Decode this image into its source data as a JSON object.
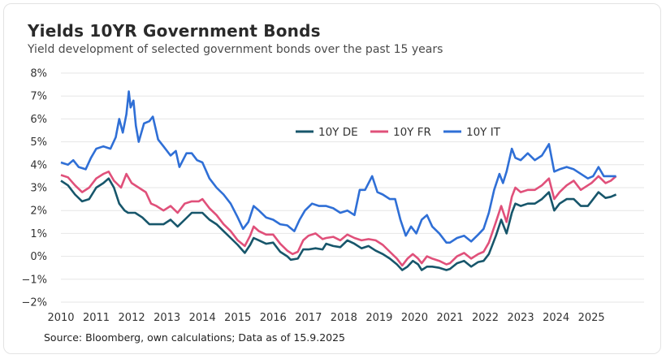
{
  "title": "Yields 10YR Government Bonds",
  "subtitle": "Yield development of selected government bonds over the past 15 years",
  "source": "Source: Bloomberg, own calculations; Data as of 15.9.2025",
  "chart_data": {
    "type": "line",
    "title": "Yields 10YR Government Bonds",
    "xlabel": "",
    "ylabel": "",
    "xlim": [
      2010,
      2025.8
    ],
    "ylim": [
      -2,
      8
    ],
    "x_ticks": [
      "2010",
      "2011",
      "2012",
      "2013",
      "2014",
      "2015",
      "2016",
      "2017",
      "2018",
      "2019",
      "2020",
      "2021",
      "2022",
      "2023",
      "2024",
      "2025"
    ],
    "y_ticks": [
      "8%",
      "7%",
      "6%",
      "5%",
      "4%",
      "3%",
      "2%",
      "1%",
      "0%",
      "−1%",
      "−2%"
    ],
    "y_tick_values": [
      8,
      7,
      6,
      5,
      4,
      3,
      2,
      1,
      0,
      -1,
      -2
    ],
    "grid": true,
    "legend_position": "top-center",
    "series": [
      {
        "name": "10Y DE",
        "color": "#17566b",
        "points": [
          [
            2010.0,
            3.3
          ],
          [
            2010.2,
            3.1
          ],
          [
            2010.4,
            2.7
          ],
          [
            2010.6,
            2.4
          ],
          [
            2010.8,
            2.5
          ],
          [
            2011.0,
            3.0
          ],
          [
            2011.2,
            3.2
          ],
          [
            2011.35,
            3.4
          ],
          [
            2011.5,
            3.0
          ],
          [
            2011.65,
            2.3
          ],
          [
            2011.8,
            2.0
          ],
          [
            2011.9,
            1.9
          ],
          [
            2012.1,
            1.9
          ],
          [
            2012.3,
            1.7
          ],
          [
            2012.5,
            1.4
          ],
          [
            2012.7,
            1.4
          ],
          [
            2012.9,
            1.4
          ],
          [
            2013.1,
            1.6
          ],
          [
            2013.3,
            1.3
          ],
          [
            2013.5,
            1.6
          ],
          [
            2013.7,
            1.9
          ],
          [
            2013.85,
            1.9
          ],
          [
            2014.0,
            1.9
          ],
          [
            2014.2,
            1.6
          ],
          [
            2014.4,
            1.4
          ],
          [
            2014.6,
            1.1
          ],
          [
            2014.8,
            0.8
          ],
          [
            2015.0,
            0.5
          ],
          [
            2015.2,
            0.15
          ],
          [
            2015.35,
            0.5
          ],
          [
            2015.45,
            0.8
          ],
          [
            2015.6,
            0.7
          ],
          [
            2015.8,
            0.55
          ],
          [
            2016.0,
            0.6
          ],
          [
            2016.2,
            0.2
          ],
          [
            2016.4,
            0.0
          ],
          [
            2016.5,
            -0.15
          ],
          [
            2016.7,
            -0.1
          ],
          [
            2016.85,
            0.3
          ],
          [
            2017.0,
            0.3
          ],
          [
            2017.2,
            0.35
          ],
          [
            2017.4,
            0.3
          ],
          [
            2017.5,
            0.55
          ],
          [
            2017.7,
            0.45
          ],
          [
            2017.9,
            0.4
          ],
          [
            2018.1,
            0.7
          ],
          [
            2018.3,
            0.55
          ],
          [
            2018.5,
            0.35
          ],
          [
            2018.7,
            0.45
          ],
          [
            2018.9,
            0.25
          ],
          [
            2019.1,
            0.1
          ],
          [
            2019.3,
            -0.1
          ],
          [
            2019.5,
            -0.35
          ],
          [
            2019.65,
            -0.6
          ],
          [
            2019.8,
            -0.45
          ],
          [
            2019.95,
            -0.2
          ],
          [
            2020.1,
            -0.35
          ],
          [
            2020.2,
            -0.6
          ],
          [
            2020.35,
            -0.45
          ],
          [
            2020.5,
            -0.45
          ],
          [
            2020.7,
            -0.5
          ],
          [
            2020.9,
            -0.6
          ],
          [
            2021.0,
            -0.55
          ],
          [
            2021.2,
            -0.3
          ],
          [
            2021.4,
            -0.2
          ],
          [
            2021.6,
            -0.45
          ],
          [
            2021.8,
            -0.25
          ],
          [
            2021.95,
            -0.2
          ],
          [
            2022.1,
            0.1
          ],
          [
            2022.3,
            0.9
          ],
          [
            2022.45,
            1.6
          ],
          [
            2022.6,
            1.0
          ],
          [
            2022.75,
            1.9
          ],
          [
            2022.85,
            2.3
          ],
          [
            2023.0,
            2.2
          ],
          [
            2023.2,
            2.3
          ],
          [
            2023.4,
            2.3
          ],
          [
            2023.6,
            2.5
          ],
          [
            2023.8,
            2.8
          ],
          [
            2023.95,
            2.0
          ],
          [
            2024.1,
            2.3
          ],
          [
            2024.3,
            2.5
          ],
          [
            2024.5,
            2.5
          ],
          [
            2024.7,
            2.2
          ],
          [
            2024.9,
            2.2
          ],
          [
            2025.0,
            2.4
          ],
          [
            2025.2,
            2.8
          ],
          [
            2025.4,
            2.55
          ],
          [
            2025.55,
            2.6
          ],
          [
            2025.7,
            2.7
          ]
        ]
      },
      {
        "name": "10Y FR",
        "color": "#e0507a",
        "points": [
          [
            2010.0,
            3.55
          ],
          [
            2010.2,
            3.45
          ],
          [
            2010.4,
            3.1
          ],
          [
            2010.6,
            2.8
          ],
          [
            2010.8,
            3.0
          ],
          [
            2011.0,
            3.4
          ],
          [
            2011.2,
            3.6
          ],
          [
            2011.35,
            3.7
          ],
          [
            2011.5,
            3.3
          ],
          [
            2011.7,
            3.0
          ],
          [
            2011.85,
            3.6
          ],
          [
            2012.0,
            3.2
          ],
          [
            2012.2,
            3.0
          ],
          [
            2012.4,
            2.8
          ],
          [
            2012.55,
            2.3
          ],
          [
            2012.7,
            2.2
          ],
          [
            2012.9,
            2.0
          ],
          [
            2013.1,
            2.2
          ],
          [
            2013.3,
            1.9
          ],
          [
            2013.5,
            2.3
          ],
          [
            2013.7,
            2.4
          ],
          [
            2013.9,
            2.4
          ],
          [
            2014.0,
            2.5
          ],
          [
            2014.2,
            2.1
          ],
          [
            2014.4,
            1.8
          ],
          [
            2014.6,
            1.4
          ],
          [
            2014.8,
            1.1
          ],
          [
            2015.0,
            0.7
          ],
          [
            2015.2,
            0.45
          ],
          [
            2015.35,
            0.9
          ],
          [
            2015.45,
            1.3
          ],
          [
            2015.6,
            1.1
          ],
          [
            2015.8,
            0.95
          ],
          [
            2016.0,
            0.95
          ],
          [
            2016.2,
            0.55
          ],
          [
            2016.4,
            0.25
          ],
          [
            2016.55,
            0.1
          ],
          [
            2016.7,
            0.2
          ],
          [
            2016.85,
            0.7
          ],
          [
            2017.0,
            0.9
          ],
          [
            2017.2,
            1.0
          ],
          [
            2017.4,
            0.75
          ],
          [
            2017.5,
            0.8
          ],
          [
            2017.7,
            0.85
          ],
          [
            2017.9,
            0.7
          ],
          [
            2018.1,
            0.95
          ],
          [
            2018.3,
            0.8
          ],
          [
            2018.5,
            0.7
          ],
          [
            2018.7,
            0.75
          ],
          [
            2018.9,
            0.7
          ],
          [
            2019.1,
            0.5
          ],
          [
            2019.3,
            0.2
          ],
          [
            2019.5,
            -0.1
          ],
          [
            2019.65,
            -0.4
          ],
          [
            2019.8,
            -0.1
          ],
          [
            2019.95,
            0.1
          ],
          [
            2020.1,
            -0.1
          ],
          [
            2020.2,
            -0.3
          ],
          [
            2020.35,
            0.0
          ],
          [
            2020.5,
            -0.1
          ],
          [
            2020.7,
            -0.2
          ],
          [
            2020.9,
            -0.35
          ],
          [
            2021.0,
            -0.3
          ],
          [
            2021.2,
            0.0
          ],
          [
            2021.4,
            0.15
          ],
          [
            2021.6,
            -0.1
          ],
          [
            2021.8,
            0.1
          ],
          [
            2021.95,
            0.2
          ],
          [
            2022.1,
            0.6
          ],
          [
            2022.3,
            1.5
          ],
          [
            2022.45,
            2.2
          ],
          [
            2022.6,
            1.5
          ],
          [
            2022.75,
            2.6
          ],
          [
            2022.85,
            3.0
          ],
          [
            2023.0,
            2.8
          ],
          [
            2023.2,
            2.9
          ],
          [
            2023.4,
            2.9
          ],
          [
            2023.6,
            3.1
          ],
          [
            2023.8,
            3.4
          ],
          [
            2023.95,
            2.5
          ],
          [
            2024.1,
            2.8
          ],
          [
            2024.3,
            3.1
          ],
          [
            2024.5,
            3.3
          ],
          [
            2024.7,
            2.9
          ],
          [
            2024.9,
            3.1
          ],
          [
            2025.0,
            3.2
          ],
          [
            2025.2,
            3.5
          ],
          [
            2025.4,
            3.2
          ],
          [
            2025.55,
            3.3
          ],
          [
            2025.7,
            3.5
          ]
        ]
      },
      {
        "name": "10Y IT",
        "color": "#2f6fd6",
        "points": [
          [
            2010.0,
            4.1
          ],
          [
            2010.2,
            4.0
          ],
          [
            2010.35,
            4.2
          ],
          [
            2010.5,
            3.9
          ],
          [
            2010.7,
            3.8
          ],
          [
            2010.85,
            4.3
          ],
          [
            2011.0,
            4.7
          ],
          [
            2011.2,
            4.8
          ],
          [
            2011.4,
            4.7
          ],
          [
            2011.55,
            5.2
          ],
          [
            2011.65,
            6.0
          ],
          [
            2011.75,
            5.4
          ],
          [
            2011.85,
            6.2
          ],
          [
            2011.92,
            7.2
          ],
          [
            2011.97,
            6.5
          ],
          [
            2012.05,
            6.8
          ],
          [
            2012.12,
            5.7
          ],
          [
            2012.2,
            5.0
          ],
          [
            2012.35,
            5.8
          ],
          [
            2012.5,
            5.9
          ],
          [
            2012.6,
            6.1
          ],
          [
            2012.75,
            5.1
          ],
          [
            2012.9,
            4.8
          ],
          [
            2013.1,
            4.4
          ],
          [
            2013.25,
            4.6
          ],
          [
            2013.35,
            3.9
          ],
          [
            2013.55,
            4.5
          ],
          [
            2013.7,
            4.5
          ],
          [
            2013.85,
            4.2
          ],
          [
            2014.0,
            4.1
          ],
          [
            2014.2,
            3.4
          ],
          [
            2014.4,
            3.0
          ],
          [
            2014.6,
            2.7
          ],
          [
            2014.8,
            2.3
          ],
          [
            2015.0,
            1.7
          ],
          [
            2015.15,
            1.2
          ],
          [
            2015.3,
            1.5
          ],
          [
            2015.45,
            2.2
          ],
          [
            2015.6,
            2.0
          ],
          [
            2015.8,
            1.7
          ],
          [
            2016.0,
            1.6
          ],
          [
            2016.2,
            1.4
          ],
          [
            2016.4,
            1.35
          ],
          [
            2016.6,
            1.1
          ],
          [
            2016.75,
            1.6
          ],
          [
            2016.9,
            2.0
          ],
          [
            2017.1,
            2.3
          ],
          [
            2017.3,
            2.2
          ],
          [
            2017.5,
            2.2
          ],
          [
            2017.7,
            2.1
          ],
          [
            2017.9,
            1.9
          ],
          [
            2018.1,
            2.0
          ],
          [
            2018.3,
            1.8
          ],
          [
            2018.45,
            2.9
          ],
          [
            2018.6,
            2.9
          ],
          [
            2018.8,
            3.5
          ],
          [
            2018.95,
            2.8
          ],
          [
            2019.1,
            2.7
          ],
          [
            2019.3,
            2.5
          ],
          [
            2019.45,
            2.5
          ],
          [
            2019.6,
            1.6
          ],
          [
            2019.75,
            0.9
          ],
          [
            2019.9,
            1.3
          ],
          [
            2020.05,
            1.0
          ],
          [
            2020.2,
            1.6
          ],
          [
            2020.35,
            1.8
          ],
          [
            2020.5,
            1.3
          ],
          [
            2020.7,
            1.0
          ],
          [
            2020.9,
            0.6
          ],
          [
            2021.0,
            0.6
          ],
          [
            2021.2,
            0.8
          ],
          [
            2021.4,
            0.9
          ],
          [
            2021.6,
            0.65
          ],
          [
            2021.8,
            0.95
          ],
          [
            2021.95,
            1.2
          ],
          [
            2022.1,
            1.9
          ],
          [
            2022.25,
            2.9
          ],
          [
            2022.4,
            3.6
          ],
          [
            2022.5,
            3.2
          ],
          [
            2022.6,
            3.7
          ],
          [
            2022.75,
            4.7
          ],
          [
            2022.85,
            4.3
          ],
          [
            2023.0,
            4.2
          ],
          [
            2023.2,
            4.5
          ],
          [
            2023.4,
            4.2
          ],
          [
            2023.6,
            4.4
          ],
          [
            2023.8,
            4.9
          ],
          [
            2023.95,
            3.7
          ],
          [
            2024.1,
            3.8
          ],
          [
            2024.3,
            3.9
          ],
          [
            2024.5,
            3.8
          ],
          [
            2024.7,
            3.6
          ],
          [
            2024.9,
            3.4
          ],
          [
            2025.05,
            3.5
          ],
          [
            2025.2,
            3.9
          ],
          [
            2025.35,
            3.5
          ],
          [
            2025.55,
            3.5
          ],
          [
            2025.7,
            3.5
          ]
        ]
      }
    ]
  }
}
